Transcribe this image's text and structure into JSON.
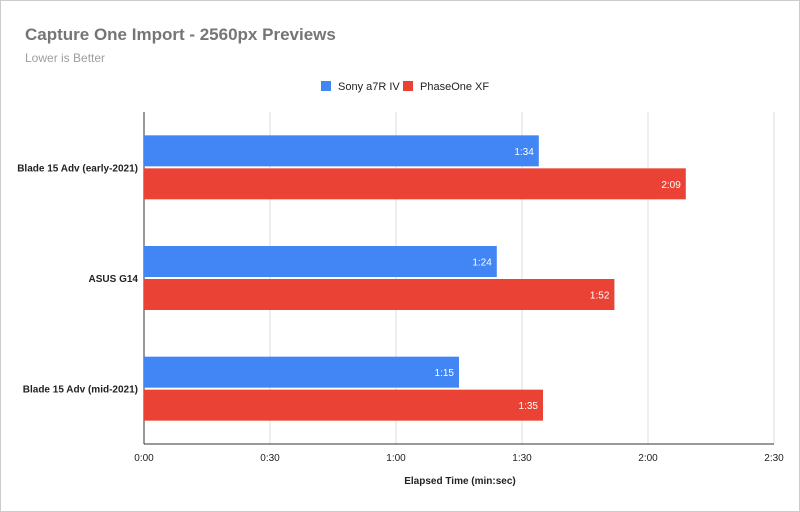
{
  "chart_data": {
    "type": "bar",
    "orientation": "horizontal",
    "title": "Capture One Import - 2560px Previews",
    "subtitle": "Lower is Better",
    "xlabel": "Elapsed Time (min:sec)",
    "ylabel": "",
    "categories": [
      "Blade 15 Adv (early-2021)",
      "ASUS G14",
      "Blade 15 Adv (mid-2021)"
    ],
    "series": [
      {
        "name": "Sony a7R IV",
        "color": "#4285f4",
        "values": [
          94,
          84,
          75
        ],
        "labels": [
          "1:34",
          "1:24",
          "1:15"
        ]
      },
      {
        "name": "PhaseOne XF",
        "color": "#ea4335",
        "values": [
          129,
          112,
          95
        ],
        "labels": [
          "2:09",
          "1:52",
          "1:35"
        ]
      }
    ],
    "xlim": [
      0,
      150
    ],
    "ticks": [
      0,
      30,
      60,
      90,
      120,
      150
    ],
    "tick_labels": [
      "0:00",
      "0:30",
      "1:00",
      "1:30",
      "2:00",
      "2:30"
    ],
    "grid": true,
    "legend_position": "top"
  }
}
